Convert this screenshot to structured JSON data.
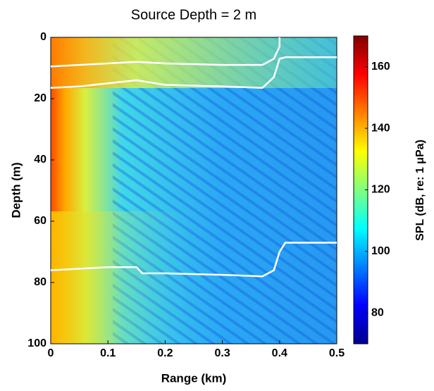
{
  "chart_data": {
    "type": "heatmap",
    "title": "Source Depth = 2 m",
    "x_label": "Range (km)",
    "y_label": "Depth (m)",
    "xlim": [
      0,
      0.5
    ],
    "xticks": [
      0,
      0.1,
      0.2,
      0.3,
      0.4,
      0.5
    ],
    "ylim": [
      0,
      100
    ],
    "yticks": [
      0,
      20,
      40,
      60,
      80,
      100
    ],
    "y_reversed": true,
    "colormap": "jet",
    "colorbar": {
      "label": "SPL (dB, re: 1 μPa)",
      "lim": [
        70,
        170
      ],
      "ticks": [
        80,
        100,
        120,
        140,
        160
      ]
    },
    "series": [
      {
        "color": "#ffffff",
        "x": [
          0,
          0.05,
          0.1,
          0.15,
          0.2,
          0.3,
          0.37,
          0.39,
          0.4,
          0.4
        ],
        "values": [
          9.5,
          9,
          8.5,
          8,
          8.5,
          9,
          9,
          7,
          3,
          0
        ]
      },
      {
        "color": "#ffffff",
        "x": [
          0,
          0.05,
          0.1,
          0.15,
          0.2,
          0.3,
          0.37,
          0.39,
          0.4,
          0.41,
          0.5
        ],
        "values": [
          16.5,
          16,
          15,
          14,
          15.5,
          16,
          16.5,
          13,
          7,
          6.5,
          6.5
        ]
      },
      {
        "color": "#ffffff",
        "x": [
          0,
          0.1,
          0.15,
          0.16,
          0.2,
          0.3,
          0.37,
          0.39,
          0.4,
          0.41,
          0.5
        ],
        "values": [
          76,
          75,
          75,
          77,
          77,
          77.5,
          78,
          76,
          70,
          67,
          67
        ]
      }
    ]
  }
}
